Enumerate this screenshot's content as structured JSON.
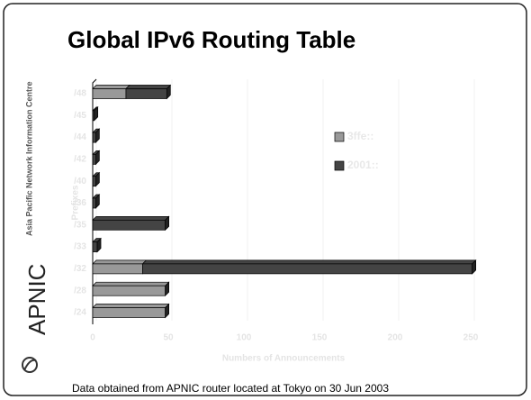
{
  "sidebar": {
    "org": "Asia Pacific Network Information Centre",
    "logo": "APNIC"
  },
  "chart_data": {
    "type": "hbar-stacked",
    "title": "Global IPv6 Routing Table",
    "categories": [
      "/24",
      "/28",
      "/32",
      "/33",
      "/35",
      "/36",
      "/40",
      "/42",
      "/44",
      "/45",
      "/48"
    ],
    "series": [
      {
        "name": "3ffe::",
        "color": "#999999",
        "values": [
          48,
          48,
          33,
          0,
          0,
          0,
          0,
          0,
          0,
          0,
          22
        ]
      },
      {
        "name": "2001::",
        "color": "#444444",
        "values": [
          0,
          0,
          218,
          3,
          48,
          2,
          2,
          2,
          2,
          1,
          27
        ]
      }
    ],
    "xlim": [
      0,
      250
    ],
    "xticks": [
      0,
      50,
      100,
      150,
      200,
      250
    ],
    "grid": true,
    "xlabel": "Numbers of Announcements",
    "ylabel": "Prefixes",
    "legend": "right",
    "footnote": "Data obtained from APNIC router located at Tokyo on 30 Jun 2003"
  }
}
